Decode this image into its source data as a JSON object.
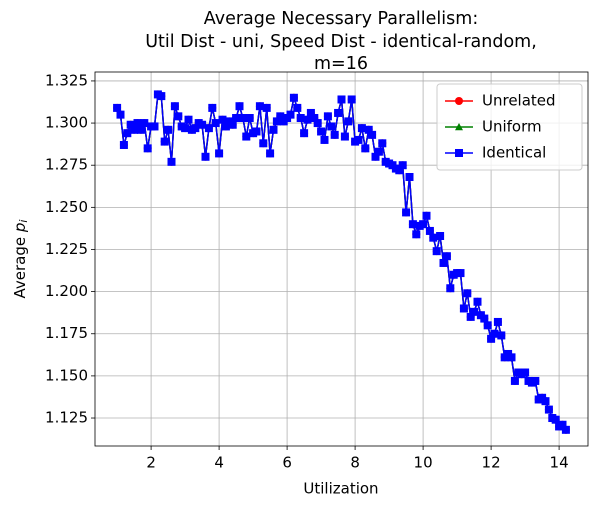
{
  "chart_data": {
    "type": "line",
    "title": [
      "Average Necessary Parallelism:",
      "Util Dist - uni, Speed Dist - identical-random,",
      "m=16"
    ],
    "x_label": "Utilization",
    "y_label": [
      "Average ",
      "p",
      "i"
    ],
    "xlim": [
      0.35,
      14.85
    ],
    "ylim": [
      1.1084,
      1.3303
    ],
    "xticks": [
      2,
      4,
      6,
      8,
      10,
      12,
      14
    ],
    "yticks": [
      1.125,
      {
        "value": 1.15,
        "label": "1.150"
      },
      1.175,
      {
        "value": 1.2,
        "label": "1.200"
      },
      1.225,
      {
        "value": 1.25,
        "label": "1.250"
      },
      1.275,
      {
        "value": 1.3,
        "label": "1.300"
      },
      1.325
    ],
    "grid": true,
    "legend": "upper right",
    "x": [
      1.0,
      1.1,
      1.2,
      1.3,
      1.4,
      1.5,
      1.6,
      1.7,
      1.8,
      1.9,
      2.0,
      2.1,
      2.2,
      2.3,
      2.4,
      2.5,
      2.6,
      2.7,
      2.8,
      2.9,
      3.0,
      3.1,
      3.2,
      3.3,
      3.4,
      3.5,
      3.6,
      3.7,
      3.8,
      3.9,
      4.0,
      4.1,
      4.2,
      4.3,
      4.4,
      4.5,
      4.6,
      4.7,
      4.8,
      4.9,
      5.0,
      5.1,
      5.2,
      5.3,
      5.4,
      5.5,
      5.6,
      5.7,
      5.8,
      5.9,
      6.0,
      6.1,
      6.2,
      6.3,
      6.4,
      6.5,
      6.6,
      6.7,
      6.8,
      6.9,
      7.0,
      7.1,
      7.2,
      7.3,
      7.4,
      7.5,
      7.6,
      7.7,
      7.8,
      7.9,
      8.0,
      8.1,
      8.2,
      8.3,
      8.4,
      8.5,
      8.6,
      8.7,
      8.8,
      8.9,
      9.0,
      9.1,
      9.2,
      9.3,
      9.4,
      9.5,
      9.6,
      9.7,
      9.8,
      9.9,
      10.0,
      10.1,
      10.2,
      10.3,
      10.4,
      10.5,
      10.6,
      10.7,
      10.8,
      10.9,
      11.0,
      11.1,
      11.2,
      11.3,
      11.4,
      11.5,
      11.6,
      11.7,
      11.8,
      11.9,
      12.0,
      12.1,
      12.2,
      12.3,
      12.4,
      12.5,
      12.6,
      12.7,
      12.8,
      12.9,
      13.0,
      13.1,
      13.2,
      13.3,
      13.4,
      13.5,
      13.6,
      13.7,
      13.8,
      13.9,
      14.0,
      14.1,
      14.2
    ],
    "series": [
      {
        "name": "Unrelated",
        "color": "#ff0000",
        "marker": "circle",
        "values": [
          1.309,
          1.305,
          1.287,
          1.294,
          1.299,
          1.296,
          1.3,
          1.296,
          1.3,
          1.285,
          1.298,
          1.298,
          1.317,
          1.316,
          1.289,
          1.296,
          1.277,
          1.31,
          1.304,
          1.298,
          1.297,
          1.302,
          1.296,
          1.297,
          1.3,
          1.299,
          1.28,
          1.297,
          1.309,
          1.3,
          1.282,
          1.302,
          1.298,
          1.301,
          1.299,
          1.303,
          1.31,
          1.303,
          1.292,
          1.303,
          1.294,
          1.295,
          1.31,
          1.288,
          1.309,
          1.282,
          1.296,
          1.301,
          1.304,
          1.301,
          1.303,
          1.305,
          1.315,
          1.309,
          1.303,
          1.294,
          1.302,
          1.306,
          1.303,
          1.3,
          1.295,
          1.29,
          1.304,
          1.298,
          1.293,
          1.306,
          1.314,
          1.292,
          1.301,
          1.314,
          1.289,
          1.29,
          1.297,
          1.285,
          1.296,
          1.293,
          1.28,
          1.283,
          1.288,
          1.277,
          1.276,
          1.275,
          1.273,
          1.272,
          1.275,
          1.247,
          1.268,
          1.24,
          1.234,
          1.239,
          1.24,
          1.245,
          1.236,
          1.232,
          1.224,
          1.233,
          1.217,
          1.221,
          1.202,
          1.21,
          1.211,
          1.211,
          1.19,
          1.199,
          1.185,
          1.188,
          1.194,
          1.186,
          1.184,
          1.18,
          1.172,
          1.175,
          1.182,
          1.174,
          1.161,
          1.163,
          1.161,
          1.147,
          1.152,
          1.151,
          1.152,
          1.147,
          1.146,
          1.147,
          1.136,
          1.137,
          1.135,
          1.13,
          1.125,
          1.124,
          1.12,
          1.121,
          1.118
        ]
      },
      {
        "name": "Uniform",
        "color": "#008000",
        "marker": "triangle",
        "values": [
          1.309,
          1.305,
          1.287,
          1.294,
          1.299,
          1.296,
          1.3,
          1.296,
          1.3,
          1.285,
          1.298,
          1.298,
          1.317,
          1.316,
          1.289,
          1.296,
          1.277,
          1.31,
          1.304,
          1.298,
          1.297,
          1.302,
          1.296,
          1.297,
          1.3,
          1.299,
          1.28,
          1.297,
          1.309,
          1.3,
          1.282,
          1.302,
          1.298,
          1.301,
          1.299,
          1.303,
          1.31,
          1.303,
          1.292,
          1.303,
          1.294,
          1.295,
          1.31,
          1.288,
          1.309,
          1.282,
          1.296,
          1.301,
          1.304,
          1.301,
          1.303,
          1.305,
          1.315,
          1.309,
          1.303,
          1.294,
          1.302,
          1.306,
          1.303,
          1.3,
          1.295,
          1.29,
          1.304,
          1.298,
          1.293,
          1.306,
          1.314,
          1.292,
          1.301,
          1.314,
          1.289,
          1.29,
          1.297,
          1.285,
          1.296,
          1.293,
          1.28,
          1.283,
          1.288,
          1.277,
          1.276,
          1.275,
          1.273,
          1.272,
          1.275,
          1.247,
          1.268,
          1.24,
          1.234,
          1.239,
          1.24,
          1.245,
          1.236,
          1.232,
          1.224,
          1.233,
          1.217,
          1.221,
          1.202,
          1.21,
          1.211,
          1.211,
          1.19,
          1.199,
          1.185,
          1.188,
          1.194,
          1.186,
          1.184,
          1.18,
          1.172,
          1.175,
          1.182,
          1.174,
          1.161,
          1.163,
          1.161,
          1.147,
          1.152,
          1.151,
          1.152,
          1.147,
          1.146,
          1.147,
          1.136,
          1.137,
          1.135,
          1.13,
          1.125,
          1.124,
          1.12,
          1.121,
          1.118
        ]
      },
      {
        "name": "Identical",
        "color": "#0000ff",
        "marker": "square",
        "values": [
          1.309,
          1.305,
          1.287,
          1.294,
          1.299,
          1.296,
          1.3,
          1.296,
          1.3,
          1.285,
          1.298,
          1.298,
          1.317,
          1.316,
          1.289,
          1.296,
          1.277,
          1.31,
          1.304,
          1.298,
          1.297,
          1.302,
          1.296,
          1.297,
          1.3,
          1.299,
          1.28,
          1.297,
          1.309,
          1.3,
          1.282,
          1.302,
          1.298,
          1.301,
          1.299,
          1.303,
          1.31,
          1.303,
          1.292,
          1.303,
          1.294,
          1.295,
          1.31,
          1.288,
          1.309,
          1.282,
          1.296,
          1.301,
          1.304,
          1.301,
          1.303,
          1.305,
          1.315,
          1.309,
          1.303,
          1.294,
          1.302,
          1.306,
          1.303,
          1.3,
          1.295,
          1.29,
          1.304,
          1.298,
          1.293,
          1.306,
          1.314,
          1.292,
          1.301,
          1.314,
          1.289,
          1.29,
          1.297,
          1.285,
          1.296,
          1.293,
          1.28,
          1.283,
          1.288,
          1.277,
          1.276,
          1.275,
          1.273,
          1.272,
          1.275,
          1.247,
          1.268,
          1.24,
          1.234,
          1.239,
          1.24,
          1.245,
          1.236,
          1.232,
          1.224,
          1.233,
          1.217,
          1.221,
          1.202,
          1.21,
          1.211,
          1.211,
          1.19,
          1.199,
          1.185,
          1.188,
          1.194,
          1.186,
          1.184,
          1.18,
          1.172,
          1.175,
          1.182,
          1.174,
          1.161,
          1.163,
          1.161,
          1.147,
          1.152,
          1.151,
          1.152,
          1.147,
          1.146,
          1.147,
          1.136,
          1.137,
          1.135,
          1.13,
          1.125,
          1.124,
          1.12,
          1.121,
          1.118
        ]
      }
    ]
  }
}
